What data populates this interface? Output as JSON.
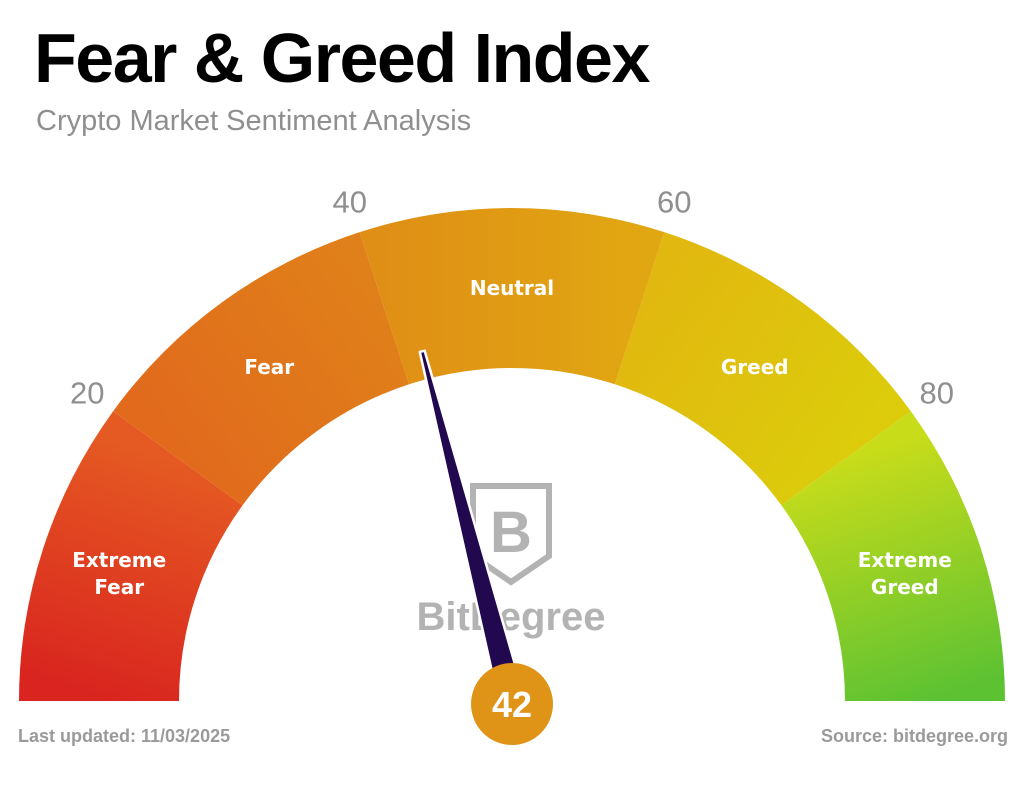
{
  "header": {
    "title": "Fear & Greed Index",
    "subtitle": "Crypto Market Sentiment Analysis"
  },
  "chart_data": {
    "type": "gauge",
    "title": "Fear & Greed Index",
    "subtitle": "Crypto Market Sentiment Analysis",
    "range": [
      0,
      100
    ],
    "value": 42,
    "value_label": "42",
    "ticks": [
      {
        "value": 20,
        "label": "20"
      },
      {
        "value": 40,
        "label": "40"
      },
      {
        "value": 60,
        "label": "60"
      },
      {
        "value": 80,
        "label": "80"
      }
    ],
    "zones": [
      {
        "from": 0,
        "to": 20,
        "label_lines": [
          "Extreme",
          "Fear"
        ],
        "color_start": "#d9241f",
        "color_end": "#e55a22"
      },
      {
        "from": 20,
        "to": 40,
        "label_lines": [
          "Fear"
        ],
        "color_start": "#e16a1c",
        "color_end": "#e0801a"
      },
      {
        "from": 40,
        "to": 60,
        "label_lines": [
          "Neutral"
        ],
        "color_start": "#df8f15",
        "color_end": "#e1a712"
      },
      {
        "from": 60,
        "to": 80,
        "label_lines": [
          "Greed"
        ],
        "color_start": "#e1b80f",
        "color_end": "#dccc0c"
      },
      {
        "from": 80,
        "to": 100,
        "label_lines": [
          "Extreme",
          "Greed"
        ],
        "color_start": "#c8dc1a",
        "color_end": "#5dc232"
      }
    ],
    "needle_color": "#22084f",
    "value_circle_color": "#df9317"
  },
  "logo": {
    "text": "BitDegree",
    "color": "#b3b3b3"
  },
  "footer": {
    "last_updated": "Last updated: 11/03/2025",
    "source": "Source: bitdegree.org"
  }
}
